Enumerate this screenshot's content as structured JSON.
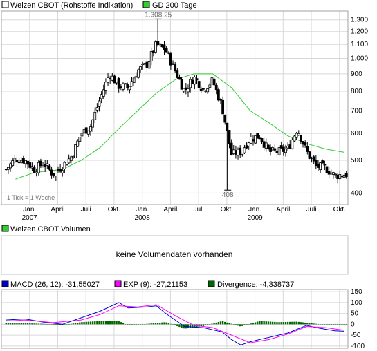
{
  "colors": {
    "candle": "#000000",
    "gd200": "#33cc33",
    "macd": "#0000cc",
    "exp": "#ff00ff",
    "divergence": "#006600",
    "grid": "#d8d8d8",
    "frame": "#a0a0a0"
  },
  "panels": {
    "price": {
      "legend": [
        {
          "label": "Weizen CBOT (Rohstoffe Indikation)",
          "color": "#ffffff"
        },
        {
          "label": "GD 200 Tage",
          "color": "#33cc33"
        }
      ],
      "note": "1 Tick = 1 Woche",
      "high_label": "1.308,25",
      "low_label": "408"
    },
    "volume": {
      "legend": {
        "label": "Weizen CBOT Volumen",
        "color": "#33cc33"
      },
      "message": "keine Volumendaten vorhanden"
    },
    "macd": {
      "legend": [
        {
          "label": "MACD (26, 12): -31,55027",
          "color": "#0000cc"
        },
        {
          "label": "EXP (9): -27,21153",
          "color": "#ff00ff"
        },
        {
          "label": "Divergence: -4,338737",
          "color": "#006600"
        }
      ]
    }
  },
  "chart_data": [
    {
      "type": "candlestick",
      "scale": "log",
      "ylim": [
        370,
        1380
      ],
      "yticks": [
        {
          "value": 400,
          "label": "400"
        },
        {
          "value": 500,
          "label": "500"
        },
        {
          "value": 600,
          "label": "600"
        },
        {
          "value": 700,
          "label": "700"
        },
        {
          "value": 800,
          "label": "800"
        },
        {
          "value": 900,
          "label": "900"
        },
        {
          "value": 1000,
          "label": "1.000"
        },
        {
          "value": 1100,
          "label": "1.100"
        },
        {
          "value": 1200,
          "label": "1.200"
        },
        {
          "value": 1300,
          "label": "1.300"
        }
      ],
      "xticks": [
        {
          "month": "2006-12",
          "label": "Jan.",
          "year": "2007"
        },
        {
          "month": "2007-03",
          "label": "April",
          "year": ""
        },
        {
          "month": "2007-06",
          "label": "Juli",
          "year": ""
        },
        {
          "month": "2007-09",
          "label": "Okt.",
          "year": ""
        },
        {
          "month": "2007-12",
          "label": "Jan.",
          "year": "2008"
        },
        {
          "month": "2008-03",
          "label": "April",
          "year": ""
        },
        {
          "month": "2008-06",
          "label": "Juli",
          "year": ""
        },
        {
          "month": "2008-09",
          "label": "Okt.",
          "year": ""
        },
        {
          "month": "2008-12",
          "label": "Jan.",
          "year": "2009"
        },
        {
          "month": "2009-03",
          "label": "April",
          "year": ""
        },
        {
          "month": "2009-06",
          "label": "Juli",
          "year": ""
        },
        {
          "month": "2009-09",
          "label": "Okt.",
          "year": ""
        }
      ],
      "series": [
        {
          "name": "Weizen CBOT (Rohstoffe Indikation)",
          "key_points": [
            {
              "date": "2006-10",
              "close": 470
            },
            {
              "date": "2006-11",
              "close": 505
            },
            {
              "date": "2006-12",
              "close": 500
            },
            {
              "date": "2007-01",
              "close": 470
            },
            {
              "date": "2007-02",
              "close": 490
            },
            {
              "date": "2007-03",
              "close": 455
            },
            {
              "date": "2007-04",
              "close": 480
            },
            {
              "date": "2007-05",
              "close": 515
            },
            {
              "date": "2007-06",
              "close": 600
            },
            {
              "date": "2007-07",
              "close": 630
            },
            {
              "date": "2007-08",
              "close": 760
            },
            {
              "date": "2007-09",
              "close": 900
            },
            {
              "date": "2007-10",
              "close": 830
            },
            {
              "date": "2007-11",
              "close": 820
            },
            {
              "date": "2007-12",
              "close": 920
            },
            {
              "date": "2008-01",
              "close": 960
            },
            {
              "date": "2008-02",
              "close": 1100
            },
            {
              "date": "2008-03",
              "close": 1060
            },
            {
              "date": "2008-04",
              "close": 920
            },
            {
              "date": "2008-05",
              "close": 800
            },
            {
              "date": "2008-06",
              "close": 880
            },
            {
              "date": "2008-07",
              "close": 810
            },
            {
              "date": "2008-08",
              "close": 860
            },
            {
              "date": "2008-09",
              "close": 720
            },
            {
              "date": "2008-10",
              "close": 520
            },
            {
              "date": "2008-11",
              "close": 530
            },
            {
              "date": "2008-12",
              "close": 580
            },
            {
              "date": "2009-01",
              "close": 590
            },
            {
              "date": "2009-02",
              "close": 530
            },
            {
              "date": "2009-03",
              "close": 530
            },
            {
              "date": "2009-04",
              "close": 540
            },
            {
              "date": "2009-05",
              "close": 620
            },
            {
              "date": "2009-06",
              "close": 530
            },
            {
              "date": "2009-07",
              "close": 480
            },
            {
              "date": "2009-08",
              "close": 475
            },
            {
              "date": "2009-09",
              "close": 450
            },
            {
              "date": "2009-10",
              "close": 455
            }
          ],
          "high": {
            "date": "2008-02",
            "value": 1308.25
          },
          "low": {
            "date": "2008-09",
            "value": 408
          }
        },
        {
          "name": "GD 200 Tage",
          "points": [
            {
              "date": "2006-11",
              "value": 440
            },
            {
              "date": "2007-01",
              "value": 460
            },
            {
              "date": "2007-04",
              "value": 470
            },
            {
              "date": "2007-06",
              "value": 500
            },
            {
              "date": "2007-08",
              "value": 545
            },
            {
              "date": "2007-10",
              "value": 620
            },
            {
              "date": "2007-12",
              "value": 700
            },
            {
              "date": "2008-02",
              "value": 790
            },
            {
              "date": "2008-04",
              "value": 865
            },
            {
              "date": "2008-06",
              "value": 900
            },
            {
              "date": "2008-08",
              "value": 900
            },
            {
              "date": "2008-10",
              "value": 820
            },
            {
              "date": "2008-12",
              "value": 700
            },
            {
              "date": "2009-02",
              "value": 645
            },
            {
              "date": "2009-04",
              "value": 590
            },
            {
              "date": "2009-06",
              "value": 560
            },
            {
              "date": "2009-08",
              "value": 540
            },
            {
              "date": "2009-10",
              "value": 528
            }
          ]
        }
      ]
    },
    {
      "type": "line",
      "ylim": [
        -110,
        160
      ],
      "yticks": [
        {
          "value": 150,
          "label": "150"
        },
        {
          "value": 100,
          "label": "100"
        },
        {
          "value": 50,
          "label": "50"
        },
        {
          "value": 0,
          "label": "0"
        },
        {
          "value": -50,
          "label": "-50"
        },
        {
          "value": -100,
          "label": "-100"
        }
      ],
      "series": [
        {
          "name": "MACD (26, 12)",
          "points": [
            {
              "date": "2006-10",
              "value": 20
            },
            {
              "date": "2006-12",
              "value": 25
            },
            {
              "date": "2007-02",
              "value": 10
            },
            {
              "date": "2007-04",
              "value": 0
            },
            {
              "date": "2007-06",
              "value": 30
            },
            {
              "date": "2007-08",
              "value": 60
            },
            {
              "date": "2007-10",
              "value": 100
            },
            {
              "date": "2007-11",
              "value": 75
            },
            {
              "date": "2008-01",
              "value": 80
            },
            {
              "date": "2008-02",
              "value": 85
            },
            {
              "date": "2008-03",
              "value": 50
            },
            {
              "date": "2008-05",
              "value": -10
            },
            {
              "date": "2008-07",
              "value": -15
            },
            {
              "date": "2008-09",
              "value": -35
            },
            {
              "date": "2008-10",
              "value": -70
            },
            {
              "date": "2008-11",
              "value": -95
            },
            {
              "date": "2008-12",
              "value": -80
            },
            {
              "date": "2009-02",
              "value": -60
            },
            {
              "date": "2009-04",
              "value": -40
            },
            {
              "date": "2009-06",
              "value": -5
            },
            {
              "date": "2009-07",
              "value": -15
            },
            {
              "date": "2009-09",
              "value": -30
            },
            {
              "date": "2009-10",
              "value": -32
            }
          ]
        },
        {
          "name": "EXP (9)",
          "points": [
            {
              "date": "2006-10",
              "value": 15
            },
            {
              "date": "2006-12",
              "value": 20
            },
            {
              "date": "2007-03",
              "value": 8
            },
            {
              "date": "2007-06",
              "value": 20
            },
            {
              "date": "2007-08",
              "value": 45
            },
            {
              "date": "2007-10",
              "value": 85
            },
            {
              "date": "2007-12",
              "value": 80
            },
            {
              "date": "2008-02",
              "value": 90
            },
            {
              "date": "2008-04",
              "value": 40
            },
            {
              "date": "2008-06",
              "value": -5
            },
            {
              "date": "2008-08",
              "value": -15
            },
            {
              "date": "2008-10",
              "value": -50
            },
            {
              "date": "2008-12",
              "value": -85
            },
            {
              "date": "2009-02",
              "value": -70
            },
            {
              "date": "2009-04",
              "value": -45
            },
            {
              "date": "2009-06",
              "value": -10
            },
            {
              "date": "2009-08",
              "value": -15
            },
            {
              "date": "2009-10",
              "value": -27
            }
          ]
        },
        {
          "name": "Divergence",
          "type": "bar",
          "points": [
            {
              "date": "2006-10",
              "value": 5
            },
            {
              "date": "2006-12",
              "value": 5
            },
            {
              "date": "2007-02",
              "value": 2
            },
            {
              "date": "2007-04",
              "value": -5
            },
            {
              "date": "2007-06",
              "value": 10
            },
            {
              "date": "2007-08",
              "value": 15
            },
            {
              "date": "2007-10",
              "value": 15
            },
            {
              "date": "2007-11",
              "value": -5
            },
            {
              "date": "2008-01",
              "value": 2
            },
            {
              "date": "2008-03",
              "value": 10
            },
            {
              "date": "2008-05",
              "value": -20
            },
            {
              "date": "2008-07",
              "value": -8
            },
            {
              "date": "2008-09",
              "value": 15
            },
            {
              "date": "2008-11",
              "value": -10
            },
            {
              "date": "2009-01",
              "value": 15
            },
            {
              "date": "2009-03",
              "value": 10
            },
            {
              "date": "2009-05",
              "value": 12
            },
            {
              "date": "2009-07",
              "value": 2
            },
            {
              "date": "2009-09",
              "value": -5
            },
            {
              "date": "2009-10",
              "value": -4
            }
          ]
        }
      ]
    }
  ]
}
